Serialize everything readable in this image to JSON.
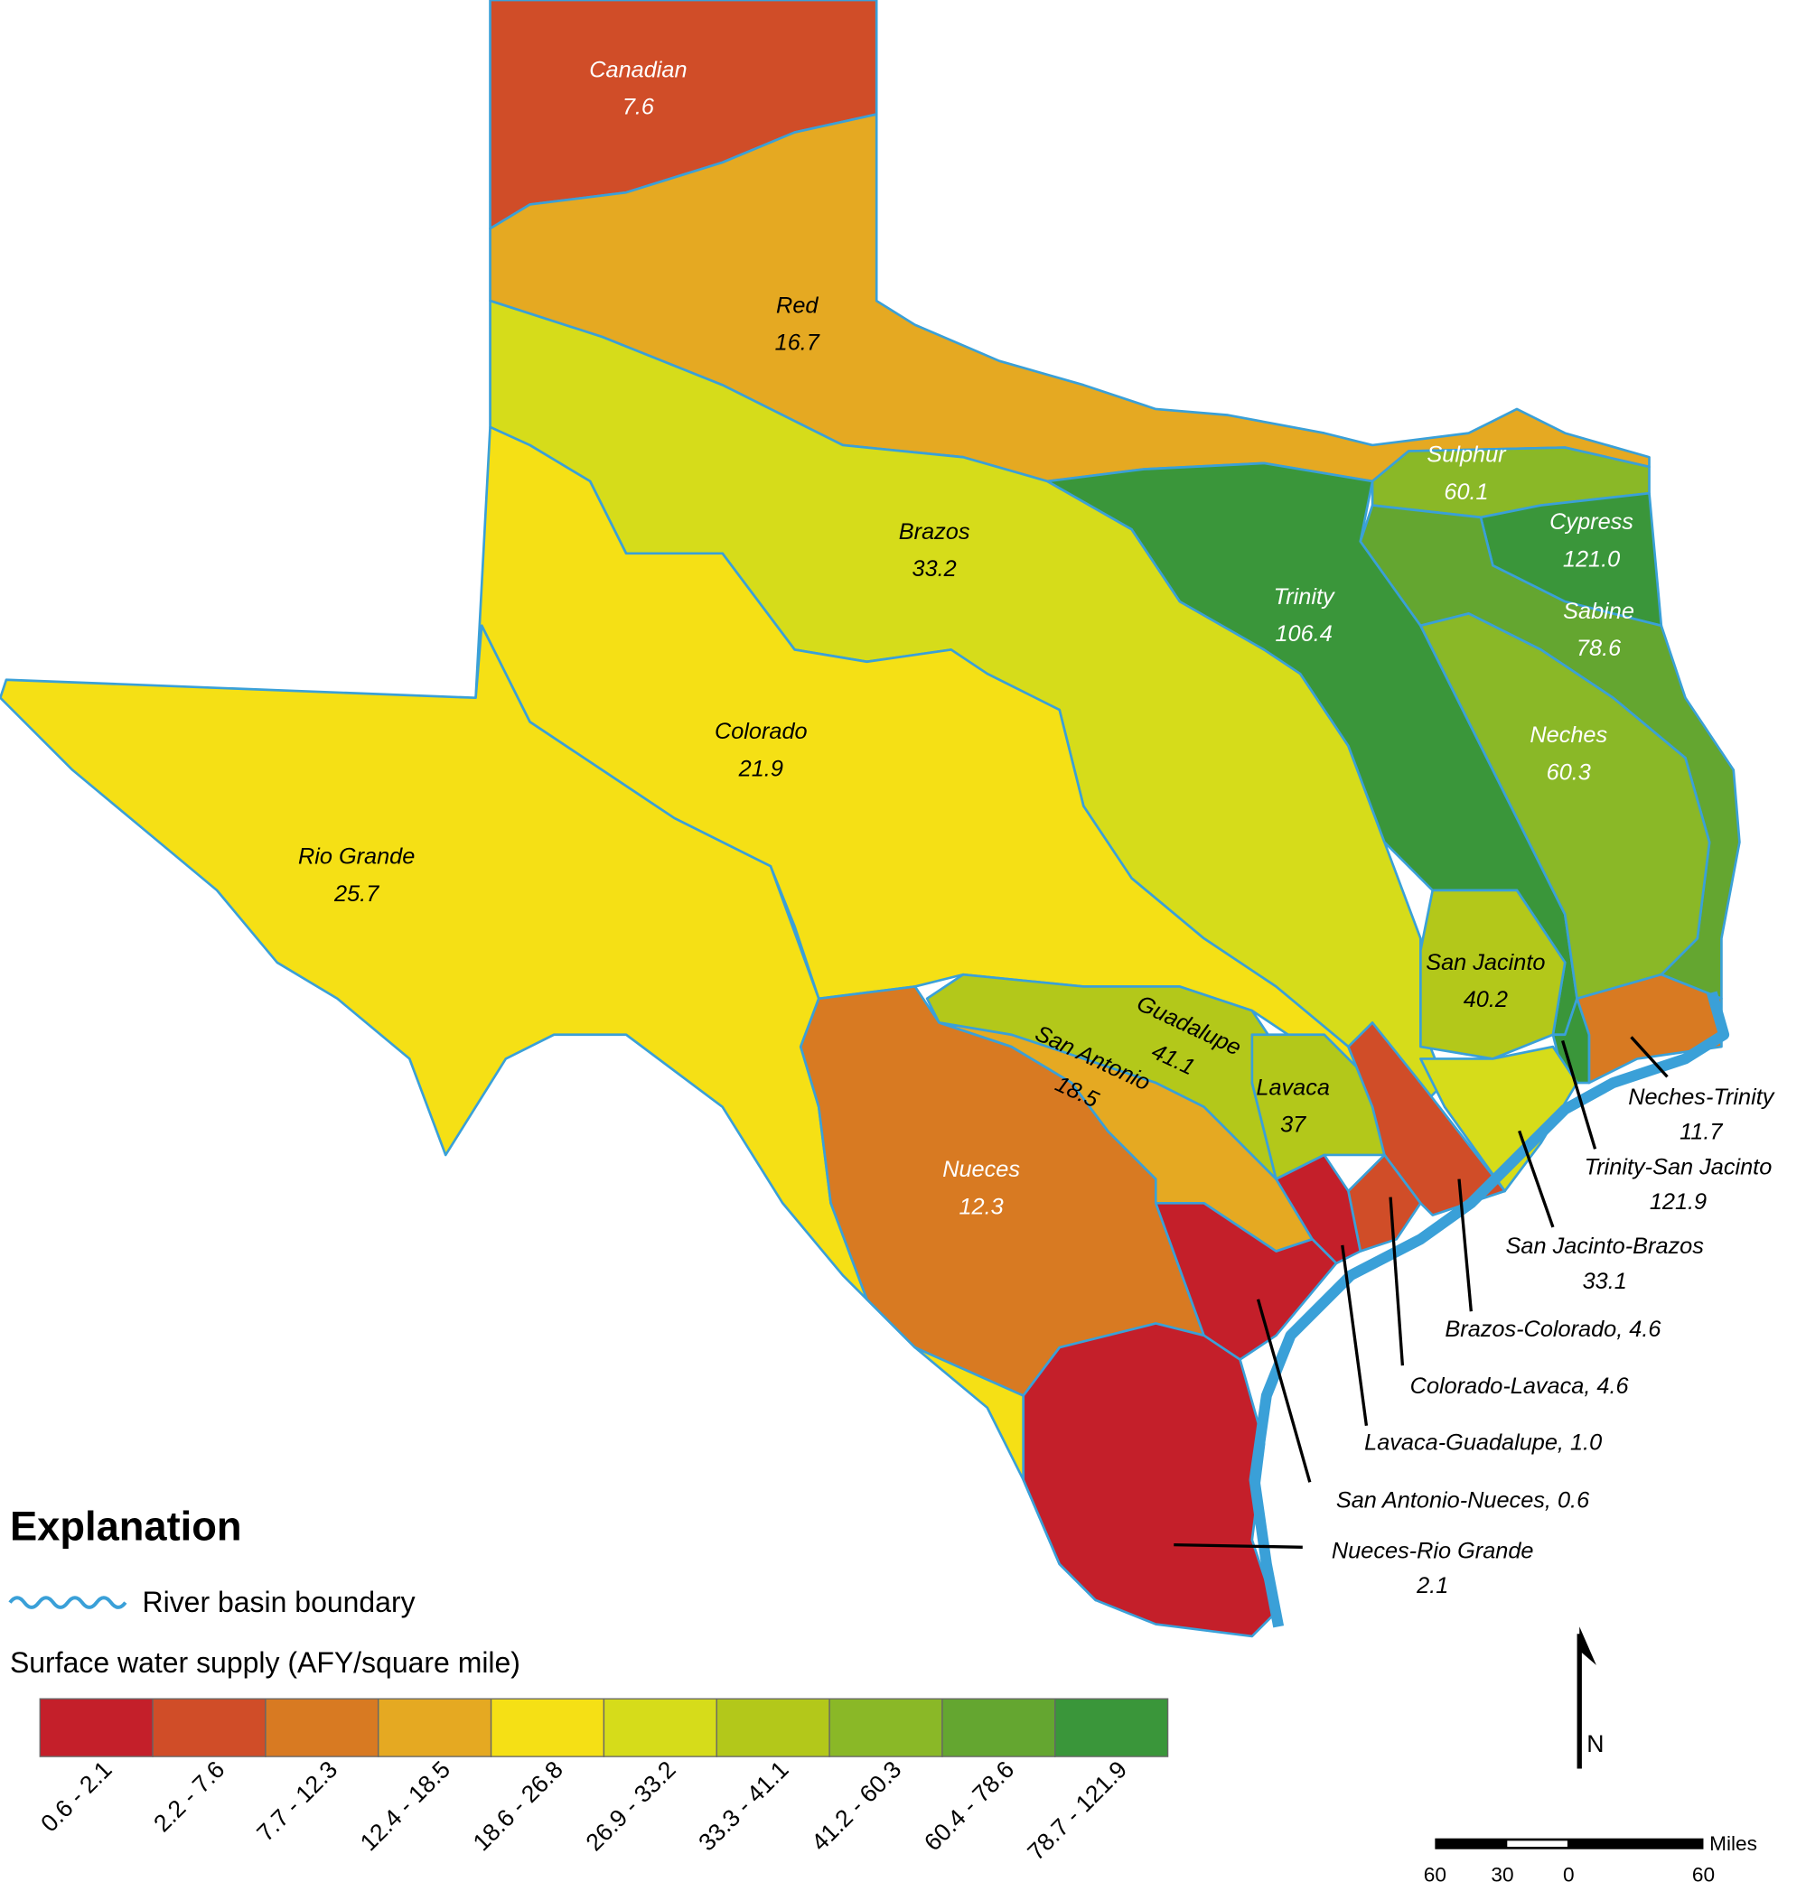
{
  "basins": [
    {
      "name": "Canadian",
      "value": "7.6",
      "color": "#d04d28"
    },
    {
      "name": "Red",
      "value": "16.7",
      "color": "#e5a922"
    },
    {
      "name": "Brazos",
      "value": "33.2",
      "color": "#d6dc1a"
    },
    {
      "name": "Colorado",
      "value": "21.9",
      "color": "#f5e015"
    },
    {
      "name": "Rio Grande",
      "value": "25.7",
      "color": "#f5e015"
    },
    {
      "name": "Trinity",
      "value": "106.4",
      "color": "#3a963a"
    },
    {
      "name": "Sulphur",
      "value": "60.1",
      "color": "#8ab827"
    },
    {
      "name": "Cypress",
      "value": "121.0",
      "color": "#3a963a"
    },
    {
      "name": "Sabine",
      "value": "78.6",
      "color": "#64a630"
    },
    {
      "name": "Neches",
      "value": "60.3",
      "color": "#8ab827"
    },
    {
      "name": "San Jacinto",
      "value": "40.2",
      "color": "#b3c81a"
    },
    {
      "name": "Guadalupe",
      "value": "41.1",
      "color": "#b3c81a"
    },
    {
      "name": "San Antonio",
      "value": "18.5",
      "color": "#e5a922"
    },
    {
      "name": "Lavaca",
      "value": "37",
      "color": "#b3c81a"
    },
    {
      "name": "Nueces",
      "value": "12.3",
      "color": "#d87a22"
    }
  ],
  "coastal_basins": [
    {
      "name": "Neches-Trinity",
      "value": "11.7",
      "color": "#d87a22"
    },
    {
      "name": "Trinity-San Jacinto",
      "value": "121.9",
      "color": "#3a963a"
    },
    {
      "name": "San Jacinto-Brazos",
      "value": "33.1",
      "color": "#d6dc1a"
    },
    {
      "label": "Brazos-Colorado, 4.6",
      "color": "#d04d28"
    },
    {
      "label": "Colorado-Lavaca, 4.6",
      "color": "#d04d28"
    },
    {
      "label": "Lavaca-Guadalupe, 1.0",
      "color": "#c41f2a"
    },
    {
      "label": "San Antonio-Nueces, 0.6",
      "color": "#c41f2a"
    },
    {
      "name": "Nueces-Rio Grande",
      "value": "2.1",
      "color": "#c41f2a"
    }
  ],
  "legend": {
    "title": "Explanation",
    "boundary": "River basin boundary",
    "boundary_color": "#3aa0d8",
    "scale_title": "Surface water supply (AFY/square mile)",
    "classes": [
      {
        "label": "0.6 - 2.1",
        "color": "#c41f2a"
      },
      {
        "label": "2.2 - 7.6",
        "color": "#d04d28"
      },
      {
        "label": "7.7 - 12.3",
        "color": "#d87a22"
      },
      {
        "label": "12.4 - 18.5",
        "color": "#e5a922"
      },
      {
        "label": "18.6 - 26.8",
        "color": "#f5e015"
      },
      {
        "label": "26.9 - 33.2",
        "color": "#d6dc1a"
      },
      {
        "label": "33.3 - 41.1",
        "color": "#b3c81a"
      },
      {
        "label": "41.2 - 60.3",
        "color": "#8ab827"
      },
      {
        "label": "60.4 - 78.6",
        "color": "#64a630"
      },
      {
        "label": "78.7 - 121.9",
        "color": "#3a963a"
      }
    ]
  },
  "scale_bar": {
    "unit": "Miles",
    "ticks": [
      "60",
      "30",
      "0",
      "60"
    ]
  },
  "north": "N"
}
